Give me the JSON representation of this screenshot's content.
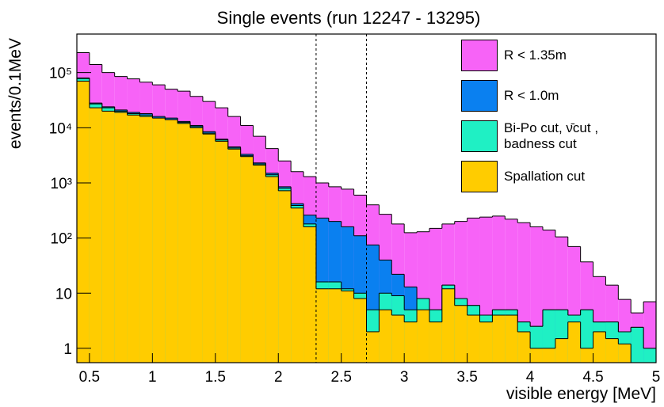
{
  "chart_data": {
    "type": "histogram",
    "title": "Single events (run 12247 - 13295)",
    "xlabel": "visible energy [MeV]",
    "ylabel": "events/0.1MeV",
    "log_y": true,
    "legend": "upper right",
    "bins": [
      0.4,
      0.5,
      0.6,
      0.7,
      0.8,
      0.9,
      1.0,
      1.1,
      1.2,
      1.3,
      1.4,
      1.5,
      1.6,
      1.7,
      1.8,
      1.9,
      2.0,
      2.1,
      2.2,
      2.3,
      2.4,
      2.5,
      2.6,
      2.7,
      2.8,
      2.9,
      3.0,
      3.1,
      3.2,
      3.3,
      3.4,
      3.5,
      3.6,
      3.7,
      3.8,
      3.9,
      4.0,
      4.1,
      4.2,
      4.3,
      4.4,
      4.5,
      4.6,
      4.7,
      4.8,
      4.9,
      5.0
    ],
    "xlim": [
      0.4,
      5.0
    ],
    "xticks": [
      0.5,
      1,
      1.5,
      2,
      2.5,
      3,
      3.5,
      4,
      4.5,
      5
    ],
    "ylim": [
      0.55,
      500000
    ],
    "yticks": [
      1,
      10,
      {
        "value": 100,
        "label": "10²"
      },
      {
        "value": 1000,
        "label": "10³"
      },
      {
        "value": 10000,
        "label": "10⁴"
      },
      {
        "value": 100000,
        "label": "10⁵"
      }
    ],
    "cut_lines": [
      2.3,
      2.7
    ],
    "series": [
      {
        "name": "R < 1.35m",
        "color": "#f763f7",
        "values": [
          230000,
          140000,
          100000,
          85000,
          77000,
          67000,
          60000,
          50000,
          46000,
          37000,
          30000,
          23000,
          16000,
          11000,
          7000,
          4200,
          2500,
          1600,
          1300,
          1000,
          850,
          770,
          600,
          400,
          270,
          180,
          125,
          130,
          150,
          180,
          200,
          230,
          240,
          250,
          220,
          190,
          160,
          140,
          105,
          70,
          37,
          20,
          14,
          7.7,
          4.4,
          7
        ]
      },
      {
        "name": "R < 1.0m",
        "color": "#0a80f0",
        "values": [
          80000,
          28000,
          24000,
          21000,
          19000,
          18000,
          16000,
          15000,
          13000,
          11000,
          8500,
          6200,
          4500,
          3300,
          2300,
          1500,
          850,
          420,
          260,
          230,
          200,
          160,
          110,
          75,
          40,
          22,
          13,
          8,
          5,
          14,
          8,
          6,
          4,
          5,
          5,
          3,
          2.5,
          5,
          5,
          4,
          5,
          3,
          3,
          2,
          2.4,
          1
        ]
      },
      {
        "name": "Bi-Po cut, ν̄cut , badness cut",
        "color": "#1ff0c4",
        "values": [
          78000,
          27000,
          23000,
          20000,
          18000,
          17000,
          15000,
          14000,
          12500,
          10500,
          8000,
          6000,
          4300,
          3100,
          2200,
          1400,
          800,
          390,
          180,
          16,
          16,
          12,
          10,
          5,
          10,
          9,
          5,
          8,
          5,
          14,
          8,
          6,
          4,
          5,
          5,
          3,
          2.5,
          5,
          5,
          4,
          5,
          3,
          3,
          2,
          2.4,
          1
        ]
      },
      {
        "name": "Spallation cut",
        "color": "#ffcc00",
        "values": [
          70000,
          23000,
          20000,
          19000,
          17000,
          16000,
          15000,
          14000,
          12000,
          10000,
          7700,
          5700,
          4100,
          3000,
          2100,
          1300,
          720,
          350,
          160,
          12,
          12,
          11,
          8,
          2,
          5,
          4,
          3,
          5,
          3,
          12,
          6,
          4,
          3,
          4,
          4,
          2,
          1,
          1,
          1.5,
          3,
          1,
          2,
          1.5,
          1.2,
          null,
          null
        ]
      }
    ]
  }
}
